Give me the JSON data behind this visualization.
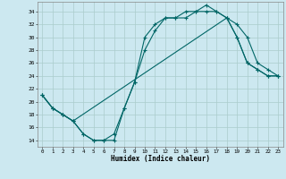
{
  "xlabel": "Humidex (Indice chaleur)",
  "bg_color": "#cce8f0",
  "grid_color": "#aacccc",
  "line_color": "#006666",
  "xlim": [
    -0.5,
    23.5
  ],
  "ylim": [
    13.0,
    35.5
  ],
  "yticks": [
    14,
    16,
    18,
    20,
    22,
    24,
    26,
    28,
    30,
    32,
    34
  ],
  "xticks": [
    0,
    1,
    2,
    3,
    4,
    5,
    6,
    7,
    8,
    9,
    10,
    11,
    12,
    13,
    14,
    15,
    16,
    17,
    18,
    19,
    20,
    21,
    22,
    23
  ],
  "line1_x": [
    0,
    1,
    2,
    3,
    4,
    5,
    6,
    7,
    8,
    9,
    10,
    11,
    12,
    13,
    14,
    15,
    16,
    17,
    18,
    19,
    20,
    21,
    22,
    23
  ],
  "line1_y": [
    21,
    19,
    18,
    17,
    15,
    14,
    14,
    15,
    19,
    23,
    28,
    31,
    33,
    33,
    34,
    34,
    35,
    34,
    33,
    30,
    26,
    25,
    24,
    24
  ],
  "line2_x": [
    0,
    1,
    2,
    3,
    4,
    5,
    6,
    7,
    8,
    9,
    10,
    11,
    12,
    13,
    14,
    15,
    16,
    17,
    18,
    19,
    20,
    21,
    22,
    23
  ],
  "line2_y": [
    21,
    19,
    18,
    17,
    15,
    14,
    14,
    14,
    19,
    23,
    30,
    32,
    33,
    33,
    33,
    34,
    34,
    34,
    33,
    30,
    26,
    25,
    24,
    24
  ],
  "line3_x": [
    0,
    1,
    2,
    3,
    18,
    19,
    20,
    21,
    22,
    23
  ],
  "line3_y": [
    21,
    19,
    18,
    17,
    33,
    32,
    30,
    26,
    25,
    24
  ]
}
